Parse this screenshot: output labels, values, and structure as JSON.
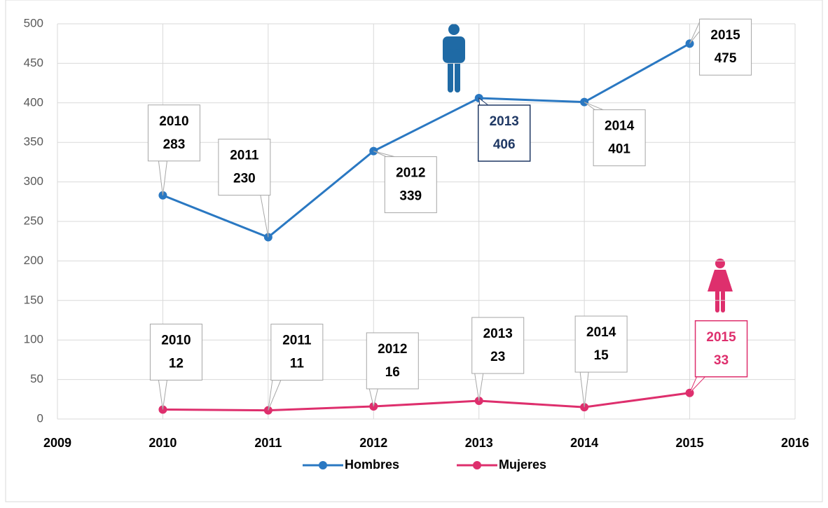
{
  "chart_data": {
    "type": "line",
    "x": [
      2010,
      2011,
      2012,
      2013,
      2014,
      2015
    ],
    "series": [
      {
        "name": "Hombres",
        "color": "#2a78c2",
        "values": [
          283,
          230,
          339,
          406,
          401,
          475
        ]
      },
      {
        "name": "Mujeres",
        "color": "#de2f6d",
        "values": [
          12,
          11,
          16,
          23,
          15,
          33
        ]
      }
    ],
    "xlim": [
      2009,
      2016
    ],
    "xticks": [
      2009,
      2010,
      2011,
      2012,
      2013,
      2014,
      2015,
      2016
    ],
    "ylim": [
      0,
      500
    ],
    "yticks": [
      0,
      50,
      100,
      150,
      200,
      250,
      300,
      350,
      400,
      450,
      500
    ],
    "grid": true,
    "legend": "bottom"
  }
}
